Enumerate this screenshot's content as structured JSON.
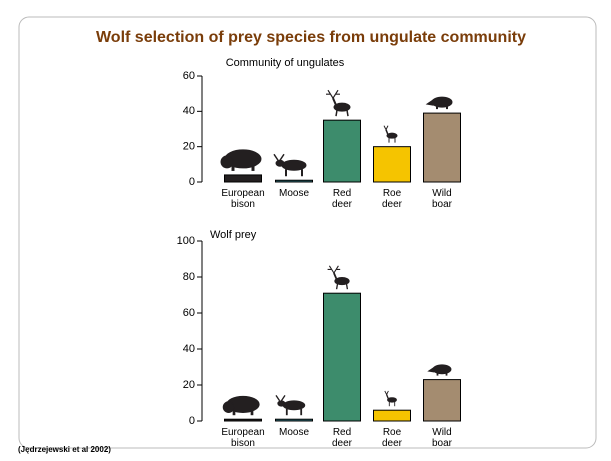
{
  "title": "Wolf selection of prey species from ungulate community",
  "source": "(Jędrzejewski et al 2002)",
  "chart_data": [
    {
      "type": "bar",
      "title": "Community of ungulates",
      "categories": [
        "European\nbison",
        "Moose",
        "Red\ndeer",
        "Roe\ndeer",
        "Wild\nboar"
      ],
      "values": [
        4,
        1,
        35,
        20,
        39
      ],
      "colors": [
        "#231f20",
        "#2f6f7a",
        "#3d8c6c",
        "#f5c400",
        "#a48c70"
      ],
      "ylim": [
        0,
        60
      ],
      "yticks": [
        0,
        20,
        40,
        60
      ]
    },
    {
      "type": "bar",
      "title": "Wolf prey",
      "categories": [
        "European\nbison",
        "Moose",
        "Red\ndeer",
        "Roe\ndeer",
        "Wild\nboar"
      ],
      "values": [
        1,
        1,
        71,
        6,
        23
      ],
      "colors": [
        "#231f20",
        "#2f6f7a",
        "#3d8c6c",
        "#f5c400",
        "#a48c70"
      ],
      "ylim": [
        0,
        100
      ],
      "yticks": [
        0,
        20,
        40,
        60,
        80,
        100
      ]
    }
  ]
}
